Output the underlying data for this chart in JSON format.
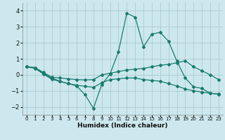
{
  "xlabel": "Humidex (Indice chaleur)",
  "bg_color": "#cce8ee",
  "grid_color": "#aacccc",
  "line_color": "#1a7a6e",
  "xlim": [
    -0.5,
    23.5
  ],
  "ylim": [
    -2.5,
    4.5
  ],
  "xticks": [
    0,
    1,
    2,
    3,
    4,
    5,
    6,
    7,
    8,
    9,
    10,
    11,
    12,
    13,
    14,
    15,
    16,
    17,
    18,
    19,
    20,
    21,
    22,
    23
  ],
  "yticks": [
    -2,
    -1,
    0,
    1,
    2,
    3,
    4
  ],
  "line1_x": [
    0,
    1,
    2,
    3,
    4,
    5,
    6,
    7,
    8,
    9,
    10,
    11,
    12,
    13,
    14,
    15,
    16,
    17,
    18,
    19,
    20,
    21,
    22,
    23
  ],
  "line1_y": [
    0.5,
    0.45,
    0.1,
    -0.2,
    -0.4,
    -0.55,
    -0.7,
    -1.25,
    -2.1,
    -0.6,
    0.05,
    1.45,
    3.85,
    3.6,
    1.75,
    2.55,
    2.65,
    2.1,
    0.85,
    -0.2,
    -0.75,
    -0.85,
    -1.15,
    -1.2
  ],
  "line2_x": [
    0,
    1,
    2,
    3,
    4,
    5,
    6,
    7,
    8,
    9,
    10,
    11,
    12,
    13,
    14,
    15,
    16,
    17,
    18,
    19,
    20,
    21,
    22,
    23
  ],
  "line2_y": [
    0.5,
    0.45,
    0.15,
    -0.15,
    -0.2,
    -0.25,
    -0.3,
    -0.32,
    -0.3,
    0.0,
    0.1,
    0.2,
    0.3,
    0.35,
    0.4,
    0.5,
    0.6,
    0.65,
    0.75,
    0.88,
    0.5,
    0.25,
    0.0,
    -0.3
  ],
  "line3_x": [
    0,
    1,
    2,
    3,
    4,
    5,
    6,
    7,
    8,
    9,
    10,
    11,
    12,
    13,
    14,
    15,
    16,
    17,
    18,
    19,
    20,
    21,
    22,
    23
  ],
  "line3_y": [
    0.5,
    0.4,
    0.05,
    -0.28,
    -0.42,
    -0.55,
    -0.65,
    -0.72,
    -0.78,
    -0.5,
    -0.3,
    -0.25,
    -0.2,
    -0.2,
    -0.3,
    -0.35,
    -0.4,
    -0.55,
    -0.7,
    -0.88,
    -1.0,
    -1.08,
    -1.15,
    -1.22
  ]
}
